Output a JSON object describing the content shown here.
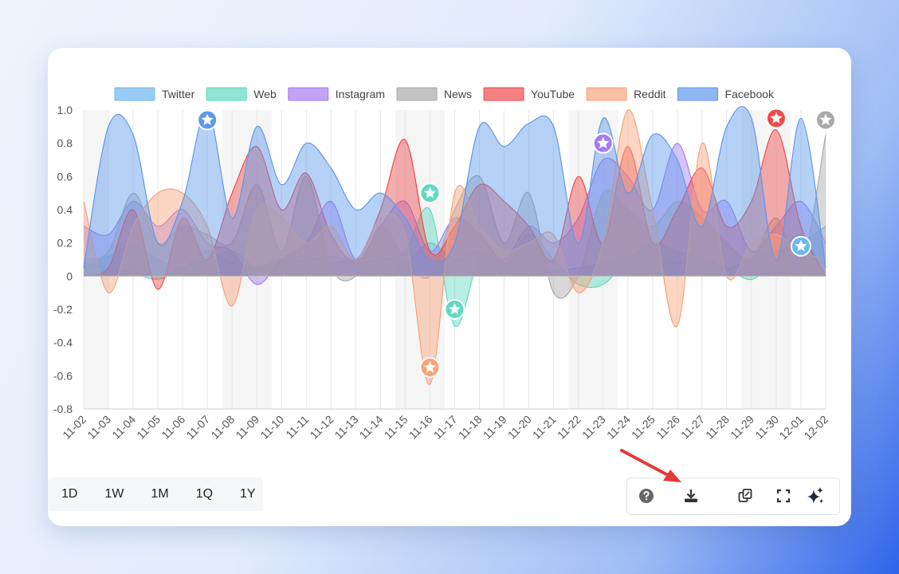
{
  "colors": {
    "Twitter": "#6cb7f2",
    "Web": "#5fd9c1",
    "Instagram": "#a57cf0",
    "News": "#a9a9a9",
    "YouTube": "#ee4b4b",
    "Reddit": "#f8a27a",
    "Facebook": "#5e98ec",
    "grid": "#e6e6e6",
    "weekend": "#f5f5f5",
    "arrow": "#e53935"
  },
  "chart_data": {
    "type": "area",
    "x": [
      "11-02",
      "11-03",
      "11-04",
      "11-05",
      "11-06",
      "11-07",
      "11-08",
      "11-09",
      "11-10",
      "11-11",
      "11-12",
      "11-13",
      "11-14",
      "11-15",
      "11-16",
      "11-17",
      "11-18",
      "11-19",
      "11-20",
      "11-21",
      "11-22",
      "11-23",
      "11-24",
      "11-25",
      "11-26",
      "11-27",
      "11-28",
      "11-29",
      "11-30",
      "12-01",
      "12-02"
    ],
    "ylim": [
      -0.8,
      1.0
    ],
    "yticks": [
      "1.0",
      "0.8",
      "0.6",
      "0.4",
      "0.2",
      "0",
      "-0.2",
      "-0.4",
      "-0.6",
      "-0.8"
    ],
    "legend_position": "top",
    "grid": true,
    "weekend_bands": [
      [
        0,
        1
      ],
      [
        5.6,
        7.6
      ],
      [
        12.6,
        14.6
      ],
      [
        19.6,
        21.6
      ],
      [
        26.6,
        28.6
      ]
    ],
    "series": [
      {
        "name": "Twitter",
        "values": [
          0.05,
          0.12,
          0.18,
          0.1,
          0.05,
          0.15,
          0.08,
          0.05,
          0.1,
          0.12,
          0.08,
          0.1,
          0.12,
          0.08,
          0.2,
          0.1,
          0.15,
          0.08,
          0.05,
          0.03,
          0.05,
          0.08,
          0.12,
          0.1,
          0.08,
          0.12,
          0.05,
          0.1,
          0.15,
          0.2,
          0.3
        ]
      },
      {
        "name": "Web",
        "values": [
          0.08,
          0.05,
          0.02,
          -0.02,
          0.05,
          0.1,
          0.15,
          0.05,
          0.08,
          0.1,
          0.12,
          0.08,
          0.1,
          0.15,
          0.4,
          -0.3,
          0.1,
          0.05,
          0.25,
          0.1,
          -0.05,
          -0.05,
          0.1,
          0.2,
          0.15,
          0.1,
          0.05,
          -0.02,
          0.1,
          0.25,
          0.0
        ]
      },
      {
        "name": "Instagram",
        "values": [
          0.3,
          0.25,
          0.45,
          0.3,
          0.4,
          0.2,
          0.15,
          -0.05,
          0.1,
          0.2,
          0.45,
          0.1,
          0.3,
          0.45,
          0.15,
          0.35,
          0.25,
          0.1,
          0.3,
          0.2,
          0.35,
          0.7,
          0.6,
          0.4,
          0.8,
          0.4,
          0.45,
          0.15,
          0.3,
          0.45,
          0.2
        ]
      },
      {
        "name": "News",
        "values": [
          0.1,
          0.15,
          0.5,
          0.2,
          0.3,
          0.25,
          0.2,
          0.55,
          0.15,
          0.6,
          0.05,
          0.0,
          0.3,
          0.1,
          0.0,
          0.4,
          0.6,
          0.2,
          0.5,
          -0.1,
          0.0,
          0.5,
          0.4,
          0.3,
          0.45,
          0.35,
          0.2,
          0.1,
          0.35,
          0.05,
          0.85
        ]
      },
      {
        "name": "YouTube",
        "values": [
          0.0,
          0.05,
          0.4,
          -0.08,
          0.35,
          0.1,
          0.5,
          0.78,
          0.4,
          0.62,
          0.25,
          0.1,
          0.4,
          0.82,
          0.15,
          0.3,
          0.55,
          0.45,
          0.3,
          0.1,
          0.6,
          0.2,
          0.78,
          0.2,
          0.4,
          0.65,
          0.3,
          0.45,
          0.88,
          0.3,
          0.0
        ]
      },
      {
        "name": "Reddit",
        "values": [
          0.45,
          -0.1,
          0.3,
          0.5,
          0.5,
          0.3,
          -0.18,
          0.4,
          0.35,
          0.2,
          0.3,
          0.1,
          0.35,
          0.25,
          -0.65,
          0.5,
          0.3,
          0.15,
          0.2,
          0.25,
          -0.1,
          0.2,
          1.0,
          0.4,
          -0.3,
          0.8,
          0.0,
          0.2,
          0.25,
          0.15,
          0.1
        ]
      },
      {
        "name": "Facebook",
        "values": [
          0.05,
          0.9,
          0.85,
          0.2,
          0.45,
          1.0,
          0.35,
          0.9,
          0.55,
          0.8,
          0.65,
          0.4,
          0.5,
          0.35,
          0.1,
          0.2,
          0.9,
          0.78,
          0.92,
          0.9,
          0.2,
          0.95,
          0.5,
          0.85,
          0.7,
          0.3,
          0.9,
          0.95,
          0.1,
          0.95,
          0.05
        ]
      }
    ],
    "markers": [
      {
        "series": "Facebook",
        "x": "11-07",
        "y": 0.94
      },
      {
        "series": "Web",
        "x": "11-16",
        "y": 0.5
      },
      {
        "series": "Web",
        "x": "11-17",
        "y": -0.2
      },
      {
        "series": "Reddit",
        "x": "11-16",
        "y": -0.55
      },
      {
        "series": "Instagram",
        "x": "11-23",
        "y": 0.8
      },
      {
        "series": "YouTube",
        "x": "11-30",
        "y": 0.95
      },
      {
        "series": "News",
        "x": "12-02",
        "y": 0.94
      },
      {
        "series": "Twitter",
        "x": "12-01",
        "y": 0.18
      }
    ]
  },
  "range_buttons": [
    "1D",
    "1W",
    "1M",
    "1Q",
    "1Y"
  ],
  "toolbar": {
    "icons": [
      "help-icon",
      "download-icon",
      "copy-icon",
      "fullscreen-icon",
      "sparkles-icon"
    ]
  }
}
